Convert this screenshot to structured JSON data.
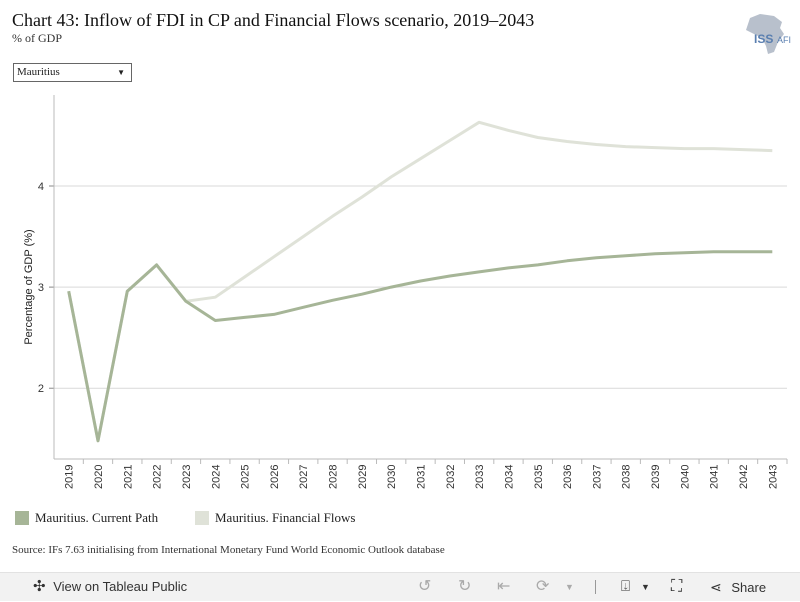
{
  "header": {
    "title": "Chart 43: Inflow of FDI in CP and Financial Flows scenario, 2019–2043",
    "subtitle": "% of GDP",
    "logo_text": "ISS AFRICA"
  },
  "filter": {
    "selected": "Mauritius"
  },
  "chart_data": {
    "type": "line",
    "title": "Chart 43: Inflow of FDI in CP and Financial Flows scenario, 2019–2043",
    "subtitle": "% of GDP",
    "xlabel": "",
    "ylabel": "Percentage of GDP (%)",
    "ylim": [
      1.3,
      4.9
    ],
    "yticks": [
      2,
      3,
      4
    ],
    "grid": true,
    "legend_position": "bottom-left",
    "x": [
      "2019",
      "2020",
      "2021",
      "2022",
      "2023",
      "2024",
      "2025",
      "2026",
      "2027",
      "2028",
      "2029",
      "2030",
      "2031",
      "2032",
      "2033",
      "2034",
      "2035",
      "2036",
      "2037",
      "2038",
      "2039",
      "2040",
      "2041",
      "2042",
      "2043"
    ],
    "series": [
      {
        "name": "Mauritius. Current Path",
        "color": "#a6b597",
        "values": [
          2.96,
          1.48,
          2.96,
          3.22,
          2.86,
          2.67,
          2.7,
          2.73,
          2.8,
          2.87,
          2.93,
          3.0,
          3.06,
          3.11,
          3.15,
          3.19,
          3.22,
          3.26,
          3.29,
          3.31,
          3.33,
          3.34,
          3.35,
          3.35,
          3.35
        ]
      },
      {
        "name": "Mauritius. Financial Flows",
        "color": "#dfe2d8",
        "values": [
          2.96,
          1.48,
          2.96,
          3.22,
          2.86,
          2.9,
          3.1,
          3.3,
          3.5,
          3.7,
          3.89,
          4.09,
          4.27,
          4.45,
          4.63,
          4.55,
          4.48,
          4.44,
          4.41,
          4.39,
          4.38,
          4.37,
          4.37,
          4.36,
          4.35
        ]
      }
    ]
  },
  "source": "Source: IFs 7.63 initialising from International Monetary Fund World Economic Outlook database",
  "toolbar": {
    "view_label": "View on Tableau Public",
    "share_label": "Share"
  }
}
